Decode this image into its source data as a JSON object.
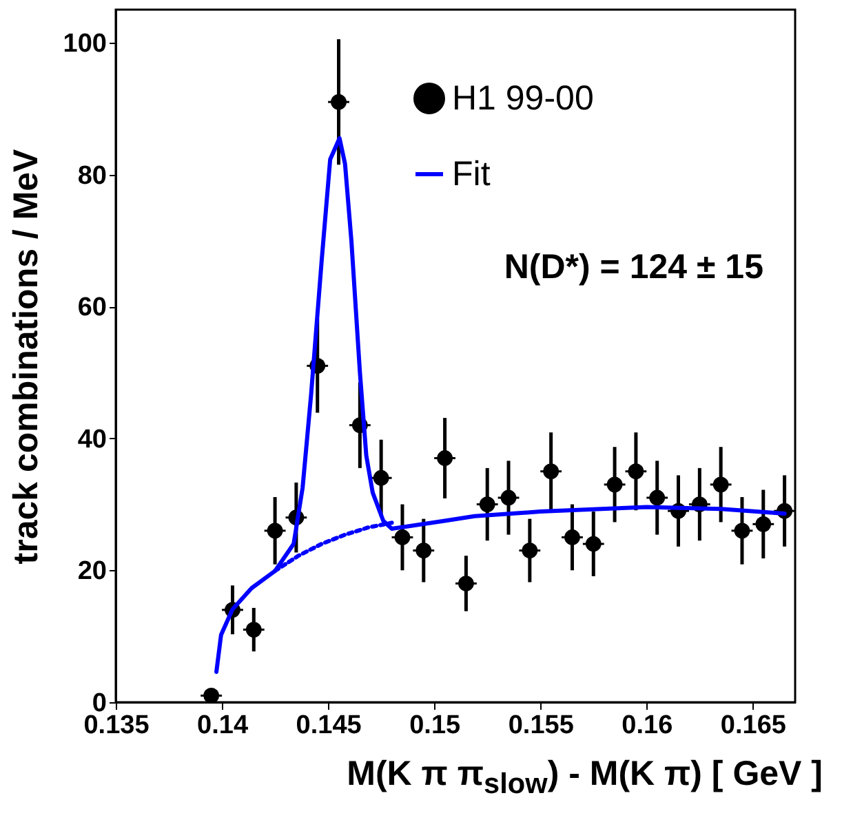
{
  "chart_data": {
    "type": "scatter",
    "xlabel": "M(K π π$_{slow}$) - M(K π) [ GeV ]",
    "ylabel": "track combinations / MeV",
    "annotations": [
      "N(D*) = 124 ± 15"
    ],
    "xlim": [
      0.135,
      0.167
    ],
    "xticks": [
      0.135,
      0.14,
      0.145,
      0.15,
      0.155,
      0.16,
      0.165
    ],
    "ylim": [
      0,
      105
    ],
    "yticks": [
      0,
      20,
      40,
      60,
      80,
      100
    ],
    "grid": false,
    "legend": "top right",
    "series": [
      {
        "name": "H1 99-00",
        "color": "#000000",
        "marker": "circle",
        "x": [
          0.1395,
          0.1405,
          0.1415,
          0.1425,
          0.1435,
          0.1445,
          0.1455,
          0.1465,
          0.1475,
          0.1485,
          0.1495,
          0.1505,
          0.1515,
          0.1525,
          0.1535,
          0.1545,
          0.1555,
          0.1565,
          0.1575,
          0.1585,
          0.1595,
          0.1605,
          0.1615,
          0.1625,
          0.1635,
          0.1645,
          0.1655,
          0.1665
        ],
        "values": [
          1,
          14,
          11,
          26,
          28,
          51,
          91,
          42,
          34,
          25,
          23,
          37,
          18,
          30,
          31,
          23,
          35,
          25,
          24,
          33,
          35,
          31,
          29,
          30,
          33,
          26,
          27,
          29
        ],
        "errors": [
          1.0,
          3.7,
          3.3,
          5.1,
          5.3,
          7.1,
          9.5,
          6.5,
          5.8,
          5.0,
          4.8,
          6.1,
          4.2,
          5.5,
          5.6,
          4.8,
          5.9,
          5.0,
          4.9,
          5.7,
          5.9,
          5.6,
          5.4,
          5.5,
          5.7,
          5.1,
          5.2,
          5.4
        ],
        "xerrors": [
          0.0005,
          0.0005,
          0.0005,
          0.0005,
          0.0005,
          0.0005,
          0.0005,
          0.0005,
          0.0005,
          0.0005,
          0.0005,
          0.0005,
          0.0005,
          0.0005,
          0.0005,
          0.0005,
          0.0005,
          0.0005,
          0.0005,
          0.0005,
          0.0005,
          0.0005,
          0.0005,
          0.0005,
          0.0005,
          0.0005,
          0.0005,
          0.0005
        ]
      },
      {
        "name": "Fit",
        "type": "line",
        "color": "#0000ff",
        "line_style": "solid",
        "x": [
          0.13974,
          0.13996,
          0.1405,
          0.1414,
          0.1425,
          0.14338,
          0.1438,
          0.1442,
          0.1447,
          0.1451,
          0.14554,
          0.1458,
          0.1461,
          0.1465,
          0.1468,
          0.1471,
          0.1476,
          0.148,
          0.1505,
          0.1519,
          0.155,
          0.16,
          0.1635,
          0.1665
        ],
        "values": [
          4.6,
          10.2,
          14.1,
          17.3,
          19.9,
          24,
          32.5,
          46.6,
          67,
          82.3,
          85.5,
          81.6,
          69.9,
          50,
          37.4,
          31.8,
          27.5,
          26.3,
          27.5,
          28.2,
          28.9,
          29.6,
          29.3,
          28.6
        ]
      },
      {
        "type": "line",
        "color": "#0000ff",
        "line_style": "dotted",
        "x": [
          0.1425,
          0.1436,
          0.1447,
          0.1458,
          0.1469,
          0.148
        ],
        "values": [
          19.9,
          22.2,
          24,
          25.4,
          26.5,
          27.2
        ]
      }
    ]
  }
}
